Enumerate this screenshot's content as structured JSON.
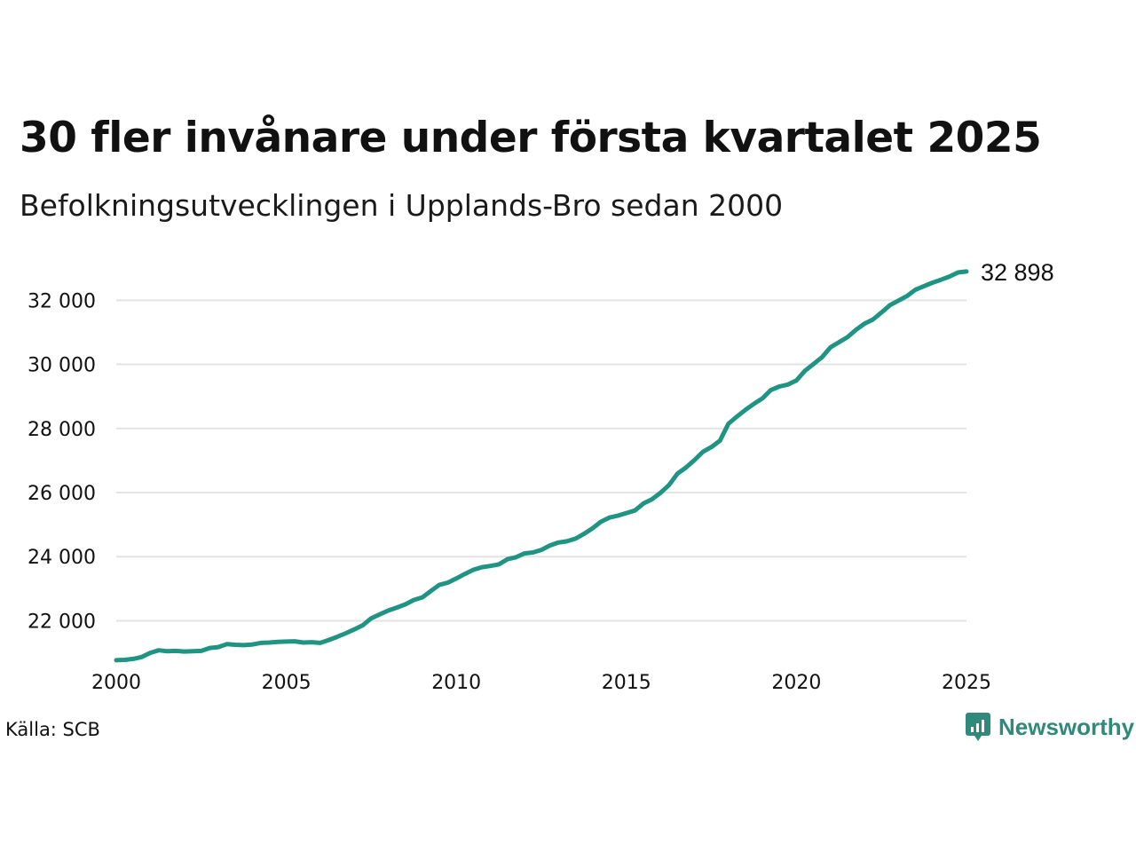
{
  "title": "30 fler invånare under första kvartalet 2025",
  "subtitle": "Befolkningsutvecklingen i Upplands-Bro sedan 2000",
  "source": "Källa: SCB",
  "brand": {
    "name": "Newsworthy",
    "icon": "newsworthy-logo-icon"
  },
  "colors": {
    "line": "#1f9482",
    "grid": "#e3e3e3",
    "brand": "#2f8a7b"
  },
  "chart_data": {
    "type": "line",
    "title": "30 fler invånare under första kvartalet 2025",
    "subtitle": "Befolkningsutvecklingen i Upplands-Bro sedan 2000",
    "xlabel": "",
    "ylabel": "",
    "xlim": [
      2000,
      2025
    ],
    "ylim": [
      20600,
      33200
    ],
    "grid": true,
    "x_ticks": [
      {
        "value": 2000,
        "label": "2000"
      },
      {
        "value": 2005,
        "label": "2005"
      },
      {
        "value": 2010,
        "label": "2010"
      },
      {
        "value": 2015,
        "label": "2015"
      },
      {
        "value": 2020,
        "label": "2020"
      },
      {
        "value": 2025,
        "label": "2025"
      }
    ],
    "y_ticks": [
      {
        "value": 22000,
        "label": "22 000"
      },
      {
        "value": 24000,
        "label": "24 000"
      },
      {
        "value": 26000,
        "label": "26 000"
      },
      {
        "value": 28000,
        "label": "28 000"
      },
      {
        "value": 30000,
        "label": "30 000"
      },
      {
        "value": 32000,
        "label": "32 000"
      }
    ],
    "end_label": "32 898",
    "series": [
      {
        "name": "",
        "points": [
          [
            2000.0,
            20770
          ],
          [
            2000.25,
            20780
          ],
          [
            2000.5,
            20810
          ],
          [
            2000.75,
            20870
          ],
          [
            2001.0,
            21000
          ],
          [
            2001.25,
            21080
          ],
          [
            2001.5,
            21050
          ],
          [
            2001.75,
            21060
          ],
          [
            2002.0,
            21040
          ],
          [
            2002.25,
            21050
          ],
          [
            2002.5,
            21060
          ],
          [
            2002.75,
            21150
          ],
          [
            2003.0,
            21180
          ],
          [
            2003.25,
            21270
          ],
          [
            2003.5,
            21250
          ],
          [
            2003.75,
            21240
          ],
          [
            2004.0,
            21260
          ],
          [
            2004.25,
            21310
          ],
          [
            2004.5,
            21320
          ],
          [
            2004.75,
            21340
          ],
          [
            2005.0,
            21350
          ],
          [
            2005.25,
            21360
          ],
          [
            2005.5,
            21320
          ],
          [
            2005.75,
            21330
          ],
          [
            2006.0,
            21310
          ],
          [
            2006.25,
            21400
          ],
          [
            2006.5,
            21500
          ],
          [
            2006.75,
            21610
          ],
          [
            2007.0,
            21730
          ],
          [
            2007.25,
            21860
          ],
          [
            2007.5,
            22080
          ],
          [
            2007.75,
            22200
          ],
          [
            2008.0,
            22320
          ],
          [
            2008.25,
            22410
          ],
          [
            2008.5,
            22510
          ],
          [
            2008.75,
            22650
          ],
          [
            2009.0,
            22730
          ],
          [
            2009.25,
            22930
          ],
          [
            2009.5,
            23120
          ],
          [
            2009.75,
            23190
          ],
          [
            2010.0,
            23320
          ],
          [
            2010.25,
            23460
          ],
          [
            2010.5,
            23590
          ],
          [
            2010.75,
            23670
          ],
          [
            2011.0,
            23710
          ],
          [
            2011.25,
            23760
          ],
          [
            2011.5,
            23920
          ],
          [
            2011.75,
            23980
          ],
          [
            2012.0,
            24100
          ],
          [
            2012.25,
            24130
          ],
          [
            2012.5,
            24210
          ],
          [
            2012.75,
            24350
          ],
          [
            2013.0,
            24440
          ],
          [
            2013.25,
            24480
          ],
          [
            2013.5,
            24560
          ],
          [
            2013.75,
            24710
          ],
          [
            2014.0,
            24880
          ],
          [
            2014.25,
            25090
          ],
          [
            2014.5,
            25220
          ],
          [
            2014.75,
            25280
          ],
          [
            2015.0,
            25360
          ],
          [
            2015.25,
            25440
          ],
          [
            2015.5,
            25660
          ],
          [
            2015.75,
            25790
          ],
          [
            2016.0,
            25990
          ],
          [
            2016.25,
            26230
          ],
          [
            2016.5,
            26590
          ],
          [
            2016.75,
            26780
          ],
          [
            2017.0,
            27010
          ],
          [
            2017.25,
            27270
          ],
          [
            2017.5,
            27420
          ],
          [
            2017.75,
            27620
          ],
          [
            2018.0,
            28150
          ],
          [
            2018.25,
            28370
          ],
          [
            2018.5,
            28580
          ],
          [
            2018.75,
            28770
          ],
          [
            2019.0,
            28940
          ],
          [
            2019.25,
            29200
          ],
          [
            2019.5,
            29310
          ],
          [
            2019.75,
            29370
          ],
          [
            2020.0,
            29500
          ],
          [
            2020.25,
            29800
          ],
          [
            2020.5,
            30010
          ],
          [
            2020.75,
            30220
          ],
          [
            2021.0,
            30530
          ],
          [
            2021.25,
            30690
          ],
          [
            2021.5,
            30850
          ],
          [
            2021.75,
            31080
          ],
          [
            2022.0,
            31270
          ],
          [
            2022.25,
            31400
          ],
          [
            2022.5,
            31620
          ],
          [
            2022.75,
            31850
          ],
          [
            2023.0,
            31990
          ],
          [
            2023.25,
            32130
          ],
          [
            2023.5,
            32330
          ],
          [
            2023.75,
            32440
          ],
          [
            2024.0,
            32550
          ],
          [
            2024.25,
            32640
          ],
          [
            2024.5,
            32740
          ],
          [
            2024.75,
            32868
          ],
          [
            2025.0,
            32898
          ]
        ]
      }
    ]
  }
}
